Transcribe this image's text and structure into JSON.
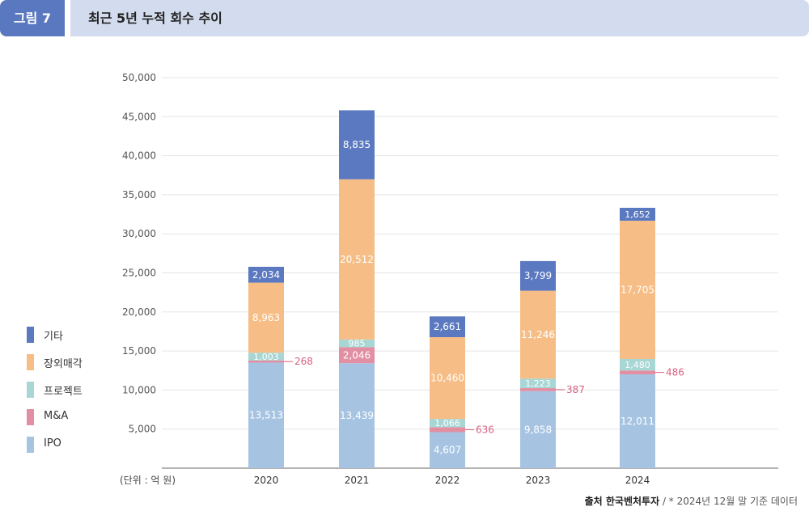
{
  "header": {
    "figure_tag": "그림 7",
    "title": "최근 5년 누적 회수 추이"
  },
  "footer": {
    "source_bold": "출처 한국벤처투자",
    "source_note": " / * 2024년 12월 말 기준 데이터"
  },
  "colors": {
    "기타": "#5b79c0",
    "장외매각": "#f6be86",
    "프로젝트": "#a8d6d4",
    "M&A": "#e28ea3",
    "IPO": "#a6c4e2",
    "outside_label": "#d9607f",
    "grid": "#e5e5e5",
    "axis": "#9a9a9a"
  },
  "chart_data": {
    "type": "bar",
    "stacked": true,
    "unit_label": "(단위 : 억 원)",
    "categories": [
      "2020",
      "2021",
      "2022",
      "2023",
      "2024"
    ],
    "ylim": [
      0,
      50000
    ],
    "yticks": [
      5000,
      10000,
      15000,
      20000,
      25000,
      30000,
      35000,
      40000,
      45000,
      50000
    ],
    "ytick_labels": [
      "5,000",
      "10,000",
      "15,000",
      "20,000",
      "25,000",
      "30,000",
      "35,000",
      "40,000",
      "45,000",
      "50,000"
    ],
    "grid": true,
    "legend_position": "left",
    "legend_order": [
      "기타",
      "장외매각",
      "프로젝트",
      "M&A",
      "IPO"
    ],
    "series": [
      {
        "name": "IPO",
        "values": [
          13513,
          13439,
          4607,
          9858,
          12011
        ],
        "labels": [
          "13,513",
          "13,439",
          "4,607",
          "9,858",
          "12,011"
        ]
      },
      {
        "name": "M&A",
        "values": [
          268,
          2046,
          636,
          387,
          486
        ],
        "labels": [
          "268",
          "2,046",
          "636",
          "387",
          "486"
        ]
      },
      {
        "name": "프로젝트",
        "values": [
          1003,
          985,
          1066,
          1223,
          1480
        ],
        "labels": [
          "1,003",
          "985",
          "1,066",
          "1,223",
          "1,480"
        ]
      },
      {
        "name": "장외매각",
        "values": [
          8963,
          20512,
          10460,
          11246,
          17705
        ],
        "labels": [
          "8,963",
          "20,512",
          "10,460",
          "11,246",
          "17,705"
        ]
      },
      {
        "name": "기타",
        "values": [
          2034,
          8835,
          2661,
          3799,
          1652
        ],
        "labels": [
          "2,034",
          "8,835",
          "2,661",
          "3,799",
          "1,652"
        ]
      }
    ]
  }
}
